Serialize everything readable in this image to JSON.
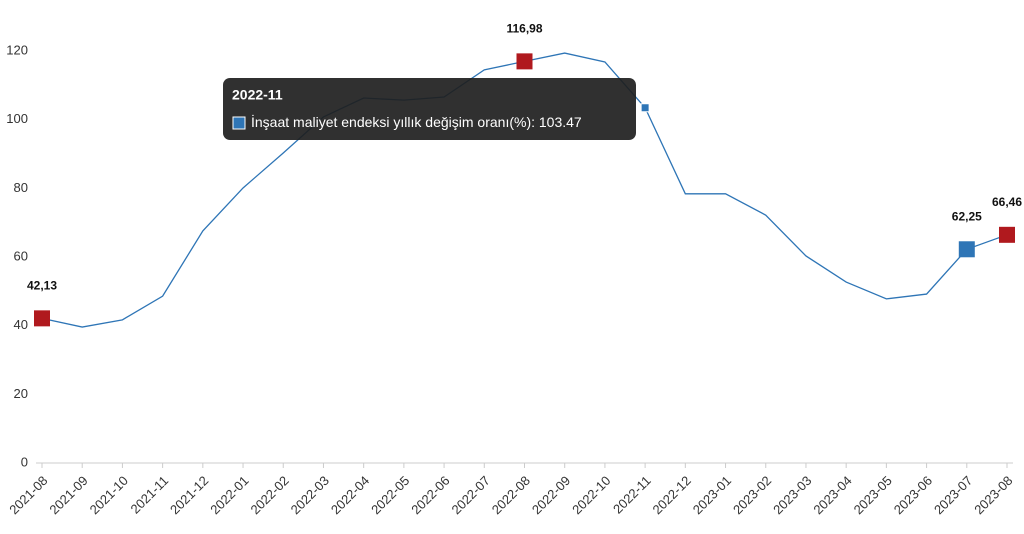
{
  "chart_data": {
    "type": "line",
    "categories": [
      "2021-08",
      "2021-09",
      "2021-10",
      "2021-11",
      "2021-12",
      "2022-01",
      "2022-02",
      "2022-03",
      "2022-04",
      "2022-05",
      "2022-06",
      "2022-07",
      "2022-08",
      "2022-09",
      "2022-10",
      "2022-11",
      "2022-12",
      "2023-01",
      "2023-02",
      "2023-03",
      "2023-04",
      "2023-05",
      "2023-06",
      "2023-07",
      "2023-08"
    ],
    "series": [
      {
        "name": "İnşaat maliyet endeksi yıllık değişim oranı(%)",
        "color": "#2e75b6",
        "values": [
          42.13,
          39.6,
          41.7,
          48.6,
          67.6,
          80.1,
          90.3,
          100.8,
          106.3,
          105.7,
          106.6,
          114.5,
          116.98,
          119.4,
          116.8,
          103.47,
          78.4,
          78.4,
          72.2,
          60.3,
          52.7,
          47.8,
          49.2,
          62.25,
          66.46
        ],
        "value_labels": [
          "42,13",
          null,
          null,
          null,
          null,
          null,
          null,
          null,
          null,
          null,
          null,
          null,
          "116,98",
          null,
          null,
          null,
          null,
          null,
          null,
          null,
          null,
          null,
          null,
          "62,25",
          "66,46"
        ]
      }
    ],
    "markers": [
      {
        "index": 0,
        "color": "#b0191e"
      },
      {
        "index": 12,
        "color": "#b0191e"
      },
      {
        "index": 23,
        "color": "#2e75b6"
      },
      {
        "index": 24,
        "color": "#b0191e"
      }
    ],
    "hover_index": 15,
    "ylim": [
      0,
      120
    ],
    "yticks": [
      0,
      20,
      40,
      60,
      80,
      100,
      120
    ],
    "grid": false
  }
}
